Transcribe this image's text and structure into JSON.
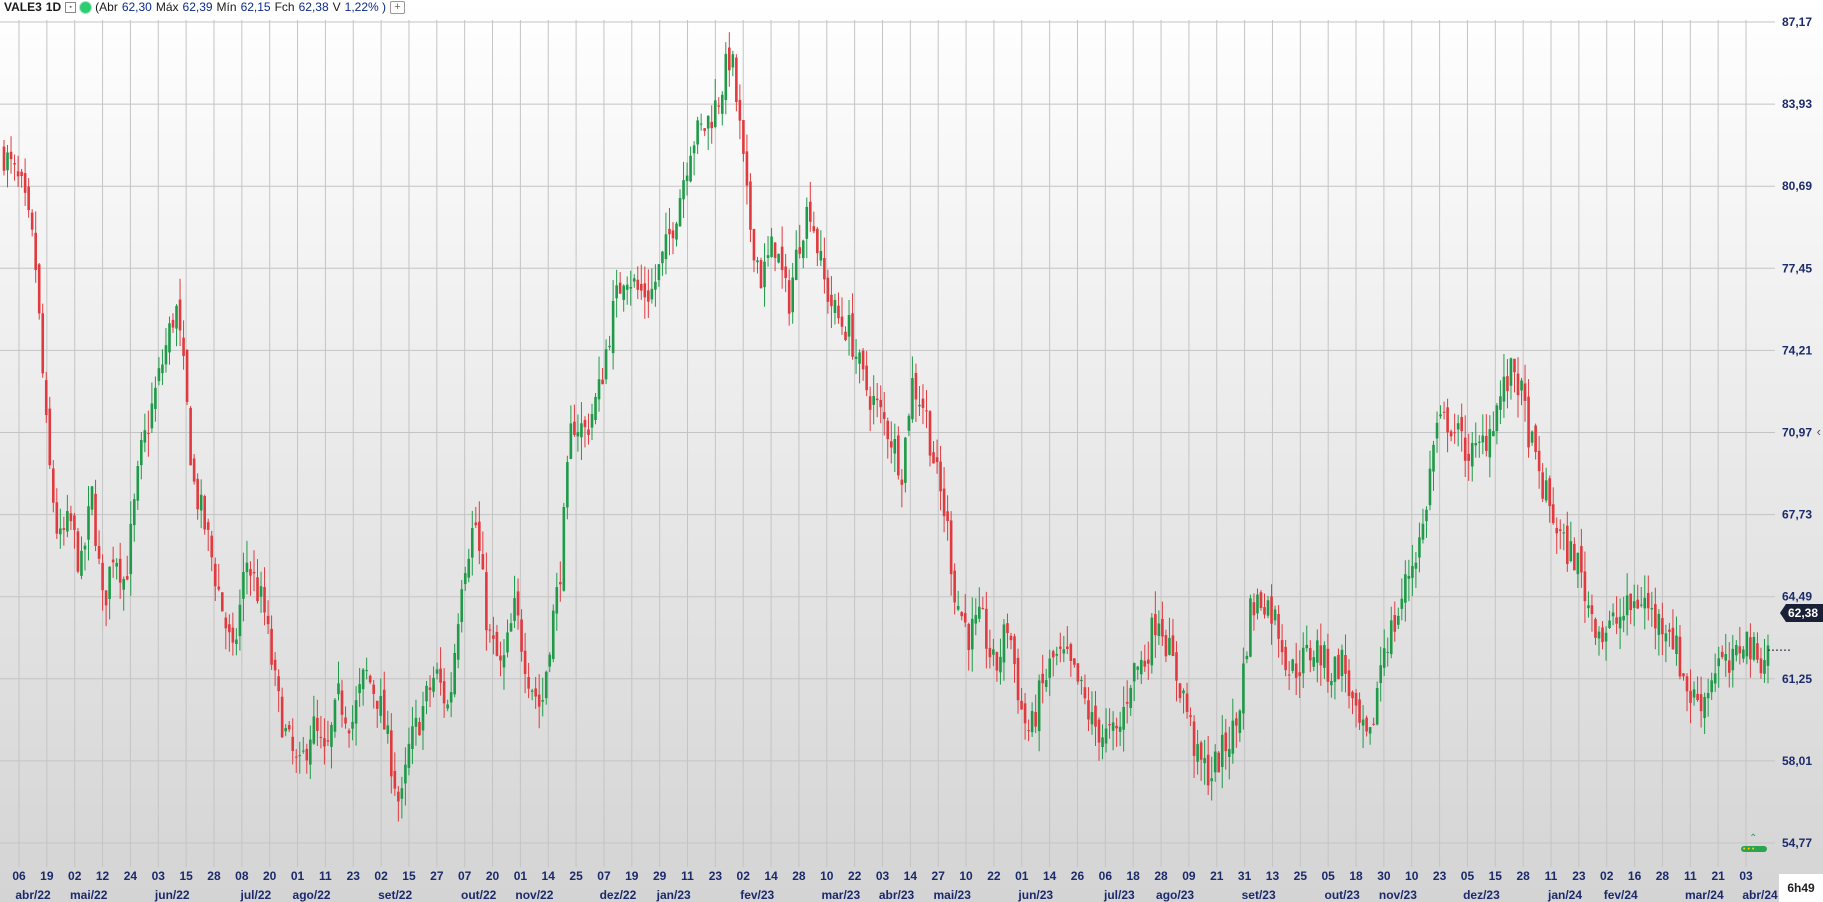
{
  "header": {
    "symbol": "VALE3",
    "timeframe": "1D",
    "open_label": "(Abr",
    "open": "62,30",
    "high_label": "Máx",
    "high": "62,39",
    "low_label": "Mín",
    "low": "62,15",
    "close_label": "Fch",
    "close": "62,38",
    "var_label": "V",
    "var": "1,22% )"
  },
  "last_price": "62,38",
  "clock": "6h49",
  "colors": {
    "up": "#1f9a48",
    "down": "#e03a3e",
    "grid": "#c4c4c4",
    "axis_text": "#1b2a6b"
  },
  "chart_data": {
    "type": "candlestick",
    "y_ticks": [
      "87,17",
      "83,93",
      "80,69",
      "77,45",
      "74,21",
      "70,97",
      "67,73",
      "64,49",
      "61,25",
      "58,01",
      "54,77"
    ],
    "ylim": [
      54.77,
      87.17
    ],
    "x_day_ticks": [
      "06",
      "19",
      "02",
      "12",
      "24",
      "03",
      "15",
      "28",
      "08",
      "20",
      "01",
      "11",
      "23",
      "02",
      "15",
      "27",
      "07",
      "20",
      "01",
      "14",
      "25",
      "07",
      "19",
      "29",
      "11",
      "23",
      "02",
      "14",
      "28",
      "10",
      "22",
      "03",
      "14",
      "27",
      "10",
      "22",
      "01",
      "14",
      "26",
      "06",
      "18",
      "28",
      "09",
      "21",
      "31",
      "13",
      "25",
      "05",
      "18",
      "30",
      "10",
      "23",
      "05",
      "15",
      "28",
      "11",
      "23",
      "02",
      "16",
      "28",
      "11",
      "21",
      "03"
    ],
    "x_month_ticks": [
      "abr/22",
      "mai/22",
      "jun/22",
      "jul/22",
      "ago/22",
      "set/22",
      "out/22",
      "nov/22",
      "dez/22",
      "jan/23",
      "fev/23",
      "mar/23",
      "abr/23",
      "mai/23",
      "jun/23",
      "jul/23",
      "ago/23",
      "set/23",
      "out/23",
      "nov/23",
      "dez/23",
      "jan/24",
      "fev/24",
      "mar/24",
      "abr/24"
    ],
    "close_path": [
      [
        0,
        82.0
      ],
      [
        8,
        80.5
      ],
      [
        14,
        78.0
      ],
      [
        20,
        70.0
      ],
      [
        25,
        66.5
      ],
      [
        30,
        67.5
      ],
      [
        35,
        65.5
      ],
      [
        40,
        68.5
      ],
      [
        45,
        64.0
      ],
      [
        50,
        66.5
      ],
      [
        55,
        65.0
      ],
      [
        62,
        70.0
      ],
      [
        70,
        73.0
      ],
      [
        78,
        76.0
      ],
      [
        82,
        73.0
      ],
      [
        86,
        69.0
      ],
      [
        92,
        67.0
      ],
      [
        98,
        64.5
      ],
      [
        104,
        62.0
      ],
      [
        110,
        66.0
      ],
      [
        118,
        64.0
      ],
      [
        124,
        60.5
      ],
      [
        128,
        59.0
      ],
      [
        134,
        57.5
      ],
      [
        140,
        59.5
      ],
      [
        146,
        58.0
      ],
      [
        152,
        60.5
      ],
      [
        158,
        59.5
      ],
      [
        164,
        61.5
      ],
      [
        170,
        60.5
      ],
      [
        176,
        58.0
      ],
      [
        180,
        56.0
      ],
      [
        184,
        58.5
      ],
      [
        190,
        60.0
      ],
      [
        196,
        61.5
      ],
      [
        202,
        60.0
      ],
      [
        208,
        65.5
      ],
      [
        214,
        67.5
      ],
      [
        220,
        63.0
      ],
      [
        226,
        61.5
      ],
      [
        232,
        64.0
      ],
      [
        238,
        61.5
      ],
      [
        244,
        60.0
      ],
      [
        248,
        63.0
      ],
      [
        252,
        65.0
      ],
      [
        258,
        71.5
      ],
      [
        264,
        71.0
      ],
      [
        270,
        72.5
      ],
      [
        276,
        75.5
      ],
      [
        282,
        77.5
      ],
      [
        288,
        76.5
      ],
      [
        294,
        76.5
      ],
      [
        300,
        78.0
      ],
      [
        306,
        80.0
      ],
      [
        312,
        82.5
      ],
      [
        318,
        83.0
      ],
      [
        324,
        84.0
      ],
      [
        330,
        86.0
      ],
      [
        334,
        83.0
      ],
      [
        338,
        79.5
      ],
      [
        344,
        77.0
      ],
      [
        350,
        78.5
      ],
      [
        356,
        76.0
      ],
      [
        362,
        79.0
      ],
      [
        366,
        80.0
      ],
      [
        372,
        77.0
      ],
      [
        378,
        75.5
      ],
      [
        384,
        75.0
      ],
      [
        390,
        73.0
      ],
      [
        396,
        72.0
      ],
      [
        402,
        71.0
      ],
      [
        408,
        69.5
      ],
      [
        412,
        73.0
      ],
      [
        418,
        72.0
      ],
      [
        424,
        69.0
      ],
      [
        428,
        67.5
      ],
      [
        432,
        64.5
      ],
      [
        438,
        63.0
      ],
      [
        444,
        63.5
      ],
      [
        450,
        61.5
      ],
      [
        456,
        63.5
      ],
      [
        462,
        60.0
      ],
      [
        466,
        59.0
      ],
      [
        470,
        60.5
      ],
      [
        476,
        62.0
      ],
      [
        482,
        62.0
      ],
      [
        488,
        61.0
      ],
      [
        494,
        59.5
      ],
      [
        500,
        59.0
      ],
      [
        506,
        59.0
      ],
      [
        512,
        61.5
      ],
      [
        518,
        62.0
      ],
      [
        524,
        64.0
      ],
      [
        530,
        62.0
      ],
      [
        536,
        60.5
      ],
      [
        542,
        58.0
      ],
      [
        548,
        57.5
      ],
      [
        554,
        58.5
      ],
      [
        560,
        59.5
      ],
      [
        566,
        64.0
      ],
      [
        572,
        64.5
      ],
      [
        578,
        63.5
      ],
      [
        584,
        61.5
      ],
      [
        590,
        62.0
      ],
      [
        596,
        62.5
      ],
      [
        602,
        61.5
      ],
      [
        608,
        62.0
      ],
      [
        614,
        59.5
      ],
      [
        620,
        58.5
      ],
      [
        626,
        62.5
      ],
      [
        632,
        63.5
      ],
      [
        638,
        65.5
      ],
      [
        644,
        67.0
      ],
      [
        650,
        71.0
      ],
      [
        656,
        71.5
      ],
      [
        662,
        70.5
      ],
      [
        668,
        70.0
      ],
      [
        674,
        71.0
      ],
      [
        680,
        72.5
      ],
      [
        686,
        73.5
      ],
      [
        690,
        72.0
      ],
      [
        696,
        69.5
      ],
      [
        702,
        68.0
      ],
      [
        708,
        66.5
      ],
      [
        714,
        66.0
      ],
      [
        720,
        64.0
      ],
      [
        726,
        63.0
      ],
      [
        732,
        63.5
      ],
      [
        738,
        64.0
      ],
      [
        744,
        64.5
      ],
      [
        750,
        63.5
      ],
      [
        756,
        63.5
      ],
      [
        762,
        61.5
      ],
      [
        766,
        60.5
      ],
      [
        772,
        60.5
      ],
      [
        778,
        62.0
      ],
      [
        784,
        61.5
      ],
      [
        790,
        63.0
      ],
      [
        796,
        62.0
      ],
      [
        801,
        62.4
      ]
    ],
    "total_candles": 502
  }
}
